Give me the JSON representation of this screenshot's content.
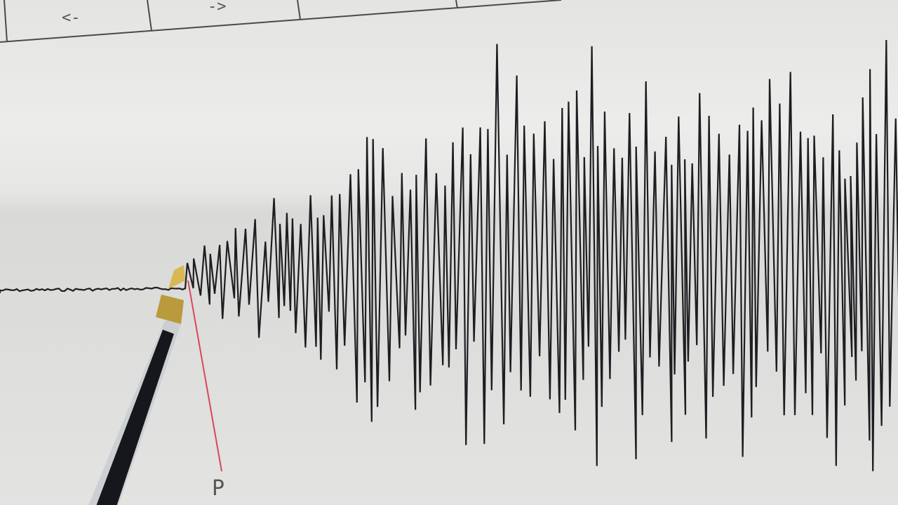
{
  "paper_header": {
    "cells": [
      "<-",
      "->",
      "",
      ""
    ]
  },
  "annotation": {
    "phase_label": "P",
    "marker_color": "#d8475a"
  },
  "colors": {
    "trace": "#1d1d22",
    "paper": "#e8e8e6",
    "pen_tip": "#c9a845"
  }
}
